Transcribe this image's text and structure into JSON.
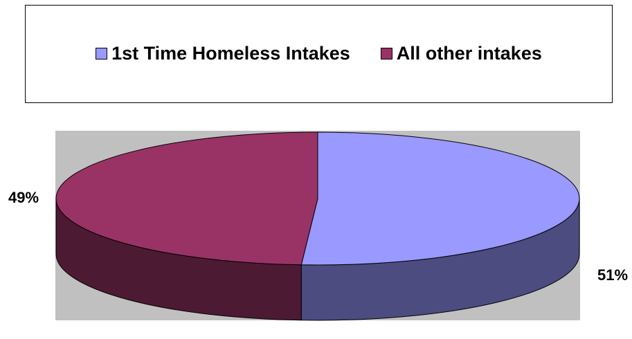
{
  "chart_data": {
    "type": "pie",
    "style": "3d",
    "slices": [
      {
        "label": "1st Time Homeless Intakes",
        "value": 51,
        "display": "51%",
        "color": "#9999ff",
        "side_color": "#4c4c80"
      },
      {
        "label": "All other intakes",
        "value": 49,
        "display": "49%",
        "color": "#993366",
        "side_color": "#4d1a33"
      }
    ],
    "legend_position": "top",
    "plot_background": "#c0c0c0"
  }
}
